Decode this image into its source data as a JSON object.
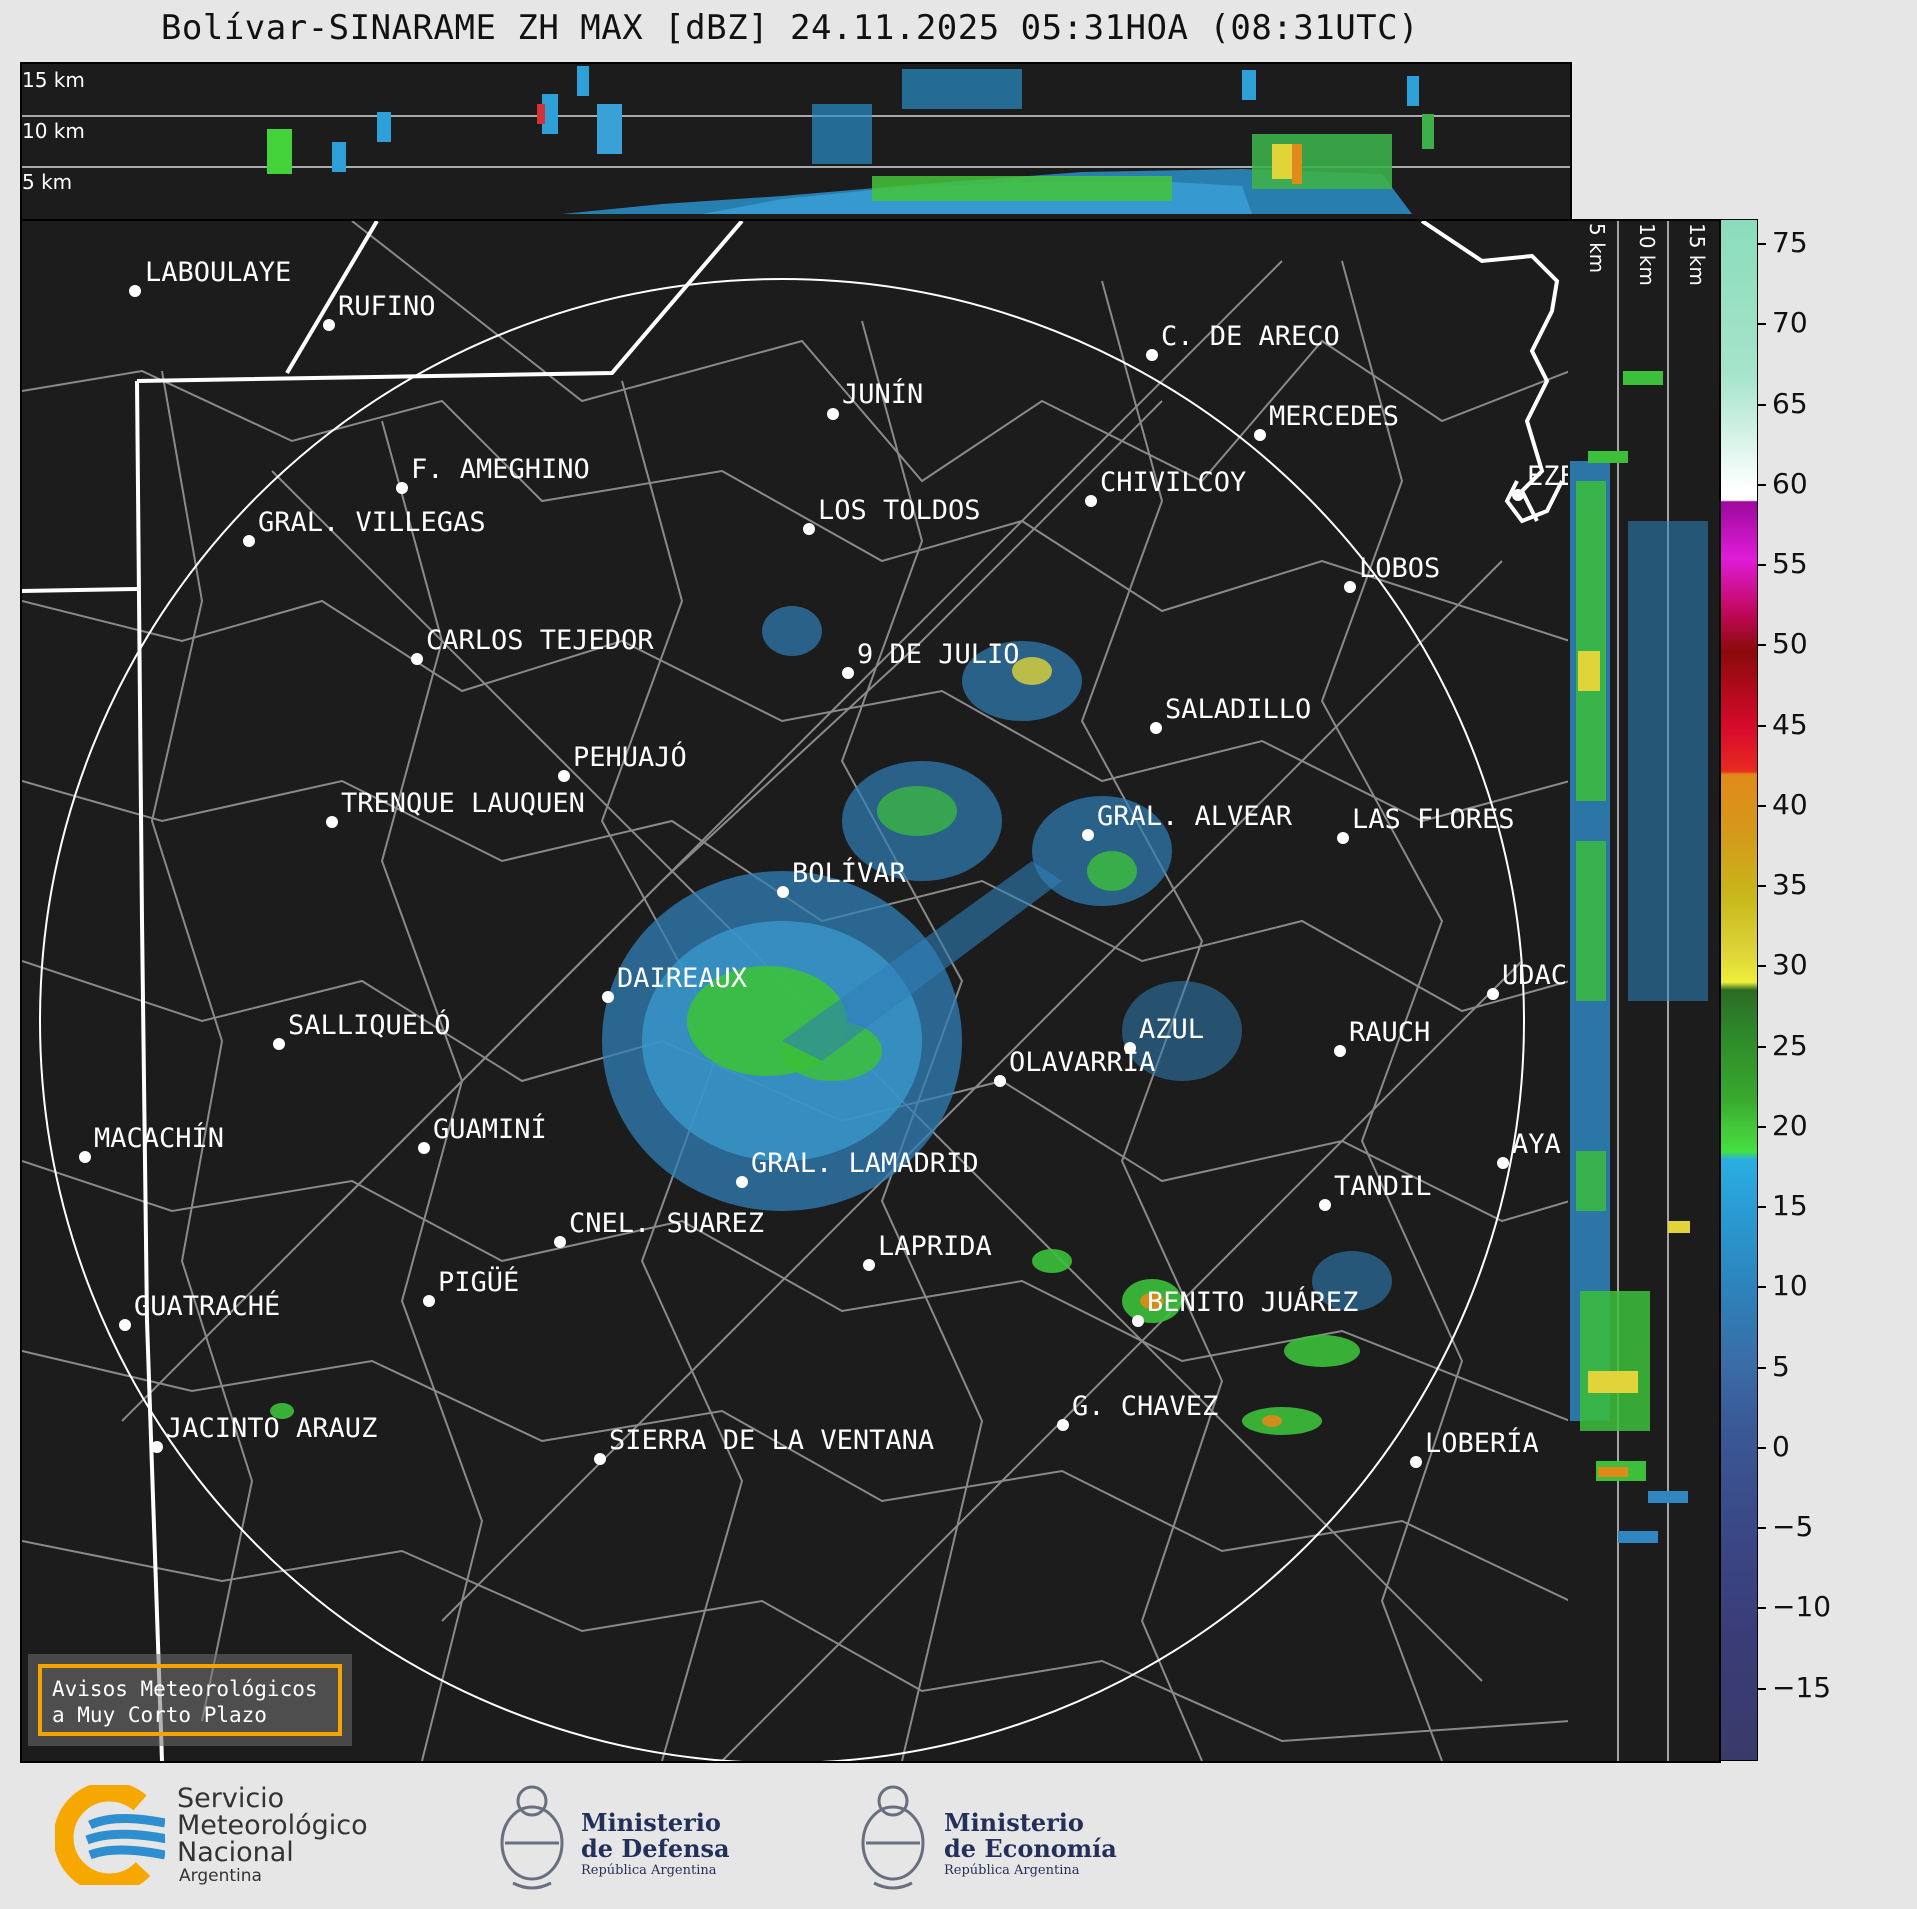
{
  "title": "Bolívar-SINARAME ZH MAX [dBZ] 24.11.2025 05:31HOA (08:31UTC)",
  "top_panel": {
    "height_labels": [
      "15 km",
      "10 km",
      "5 km"
    ]
  },
  "side_panel": {
    "height_labels": [
      "5 km",
      "10 km",
      "15 km"
    ]
  },
  "colorbar": {
    "unit": "dBZ",
    "ticks": [
      "75",
      "70",
      "65",
      "60",
      "55",
      "50",
      "45",
      "40",
      "35",
      "30",
      "25",
      "20",
      "15",
      "10",
      "5",
      "0",
      "−5",
      "−10",
      "−15"
    ]
  },
  "cities": {
    "laboulaye": "LABOULAYE",
    "rufino": "RUFINO",
    "c_de_areco": "C. DE ARECO",
    "junin": "JUNÍN",
    "mercedes": "MERCEDES",
    "f_ameghino": "F. AMEGHINO",
    "chivilcoy": "CHIVILCOY",
    "eze": "EZE",
    "los_toldos": "LOS TOLDOS",
    "gral_villegas": "GRAL. VILLEGAS",
    "lobos": "LOBOS",
    "carlos_tejedor": "CARLOS TEJEDOR",
    "nueve_de_julio": "9 DE JULIO",
    "saladillo": "SALADILLO",
    "pehuajo": "PEHUAJÓ",
    "trenque_lauquen": "TRENQUE LAUQUEN",
    "gral_alvear": "GRAL. ALVEAR",
    "las_flores": "LAS FLORES",
    "bolivar": "BOLÍVAR",
    "daireaux": "DAIREAUX",
    "udac": "UDAC",
    "azul": "AZUL",
    "rauch": "RAUCH",
    "salliquelo": "SALLIQUELÓ",
    "olavarria": "OLAVARRÍA",
    "guamini": "GUAMINÍ",
    "macachin": "MACACHÍN",
    "aya": "AYA",
    "gral_lamadrid": "GRAL. LAMADRID",
    "tandil": "TANDIL",
    "cnel_suarez": "CNEL. SUAREZ",
    "laprida": "LAPRIDA",
    "pigue": "PIGÜÉ",
    "guatrache": "GUATRACHÉ",
    "benito_juarez": "BENITO JUÁREZ",
    "g_chavez": "G. CHAVEZ",
    "jacinto_arauz": "JACINTO ARAUZ",
    "sierra_de_la_ventana": "SIERRA DE LA VENTANA",
    "loberia": "LOBERÍA"
  },
  "avisos": {
    "line1": "Avisos Meteorológicos",
    "line2": "a Muy Corto Plazo"
  },
  "logos": {
    "smn": {
      "line1": "Servicio",
      "line2": "Meteorológico",
      "line3": "Nacional",
      "line4": "Argentina"
    },
    "defensa": {
      "line1": "Ministerio",
      "line2": "de Defensa",
      "line3": "República Argentina"
    },
    "economia": {
      "line1": "Ministerio",
      "line2": "de Economía",
      "line3": "República Argentina"
    }
  },
  "colors": {
    "map_background": "#1c1c1c",
    "county_lines": "#8a8a8a",
    "province_lines": "#ffffff",
    "avisos_border": "#f5a300"
  }
}
